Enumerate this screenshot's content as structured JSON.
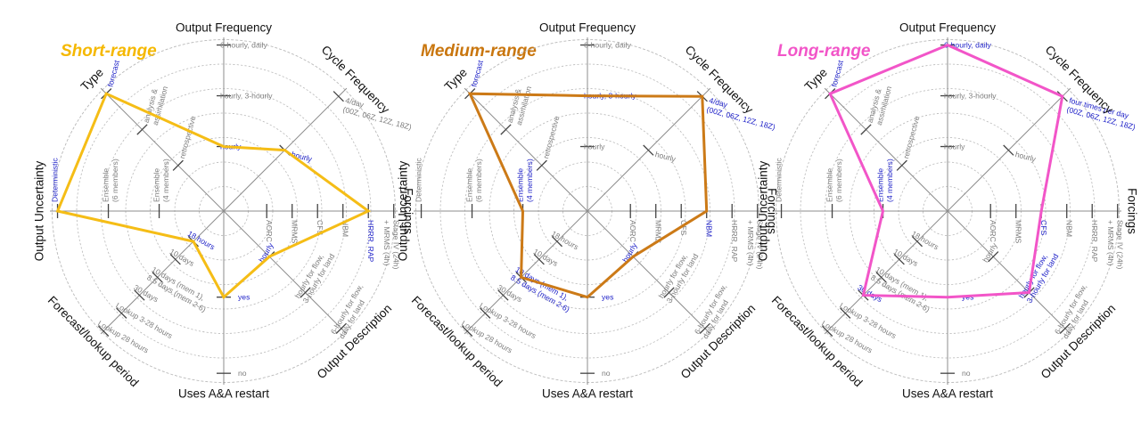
{
  "chart_data": [
    {
      "type": "radar",
      "title": "Short-range",
      "title_color": "#f5b800",
      "line_color": "#f5bd16",
      "grid": true,
      "categories": [
        "Output Frequency",
        "Cycle Frequency",
        "Forcings",
        "Output Description",
        "Uses A&A restart",
        "Forecast/lookup period",
        "Output Uncertainty",
        "Type"
      ],
      "ticks": [
        [
          "hourly",
          "hourly, 3-hourly",
          "6-hourly, daily"
        ],
        [
          "hourly",
          "4/day (00Z, 06Z, 12Z, 18Z)"
        ],
        [
          "AORC",
          "MRMS",
          "CFS",
          "NBM",
          "HRRR, RAP",
          "Stage IV (24h) + MRMS (4h)"
        ],
        [
          "hourly",
          "hourly for flow, 3-hourly for land",
          "6-hourly for flow, daily for land"
        ],
        [
          "yes",
          "no"
        ],
        [
          "18 hours",
          "10 days",
          "10 days (mem 1), 8.5 days (mem 2-6)",
          "30 days",
          "Lookup 3-28 hours",
          "Lookup 28 hours"
        ],
        [
          "Ensemble (4 members)",
          "Ensemble (6 members)",
          "Deterministic"
        ],
        [
          "retrospective",
          "analysis & assimilation",
          "forecast"
        ]
      ],
      "selected": [
        0,
        0,
        4,
        0,
        0,
        0,
        2,
        2
      ],
      "series": [
        {
          "values": [
            "hourly",
            "hourly",
            "HRRR, RAP",
            "hourly",
            "yes",
            "18 hours",
            "Deterministic",
            "forecast"
          ]
        }
      ]
    },
    {
      "type": "radar",
      "title": "Medium-range",
      "title_color": "#c9760e",
      "line_color": "#cc7a17",
      "grid": true,
      "categories": [
        "Output Frequency",
        "Cycle Frequency",
        "Forcings",
        "Output Description",
        "Uses A&A restart",
        "Forecast/lookup period",
        "Output Uncertainty",
        "Type"
      ],
      "ticks": [
        [
          "hourly",
          "hourly, 3-hourly",
          "6-hourly, daily"
        ],
        [
          "hourly",
          "4/day (00Z, 06Z, 12Z, 18Z)"
        ],
        [
          "AORC",
          "MRMS",
          "CFS",
          "NBM",
          "HRRR, RAP",
          "Stage IV (24h) + MRMS (4h)"
        ],
        [
          "hourly",
          "hourly for flow, 3-hourly for land",
          "6-hourly for flow, daily for land"
        ],
        [
          "yes",
          "no"
        ],
        [
          "18 hours",
          "10 days",
          "10 days (mem 1), 8.5 days (mem 2-6)",
          "30 days",
          "Lookup 3-28 hours",
          "Lookup 28 hours"
        ],
        [
          "Ensemble (4 members)",
          "Ensemble (6 members)",
          "Deterministic"
        ],
        [
          "retrospective",
          "analysis & assimilation",
          "forecast"
        ]
      ],
      "selected": [
        1,
        1,
        3,
        0,
        0,
        2,
        0,
        2
      ],
      "series": [
        {
          "values": [
            "hourly, 3-hourly",
            "4/day (00Z, 06Z, 12Z, 18Z)",
            "NBM",
            "hourly",
            "yes",
            "10 days (mem 1), 8.5 days (mem 2-6)",
            "Ensemble (4 members)",
            "forecast"
          ]
        }
      ]
    },
    {
      "type": "radar",
      "title": "Long-range",
      "title_color": "#f255c8",
      "line_color": "#f255c8",
      "grid": true,
      "categories": [
        "Output Frequency",
        "Cycle Frequency",
        "Forcings",
        "Output Description",
        "Uses A&A restart",
        "Forecast/lookup period",
        "Output Uncertainty",
        "Type"
      ],
      "ticks": [
        [
          "hourly",
          "hourly, 3-hourly",
          "6-hourly, daily"
        ],
        [
          "hourly",
          "four times per day (00Z, 06Z, 12Z, 18Z)"
        ],
        [
          "AORC",
          "MRMS",
          "CFS",
          "NBM",
          "HRRR, RAP",
          "Stage IV (24h) + MRMS (4h)"
        ],
        [
          "hourly",
          "hourly for flow, 3-hourly for land",
          "6-hourly for flow, daily for land"
        ],
        [
          "yes",
          "no"
        ],
        [
          "18 hours",
          "10 days",
          "10 days (mem 1), 8.5 days (mem 2-6)",
          "30 days",
          "Lookup 3-28 hours",
          "Lookup 28 hours"
        ],
        [
          "Ensemble (4 members)",
          "Ensemble (6 members)",
          "Deterministic"
        ],
        [
          "retrospective",
          "analysis & assimilation",
          "forecast"
        ]
      ],
      "selected": [
        2,
        1,
        2,
        1,
        0,
        3,
        0,
        2
      ],
      "series": [
        {
          "values": [
            "6-hourly, daily",
            "four times per day (00Z, 06Z, 12Z, 18Z)",
            "CFS",
            "hourly for flow, 3-hourly for land",
            "yes",
            "30 days",
            "Ensemble (4 members)",
            "forecast"
          ]
        }
      ]
    }
  ]
}
